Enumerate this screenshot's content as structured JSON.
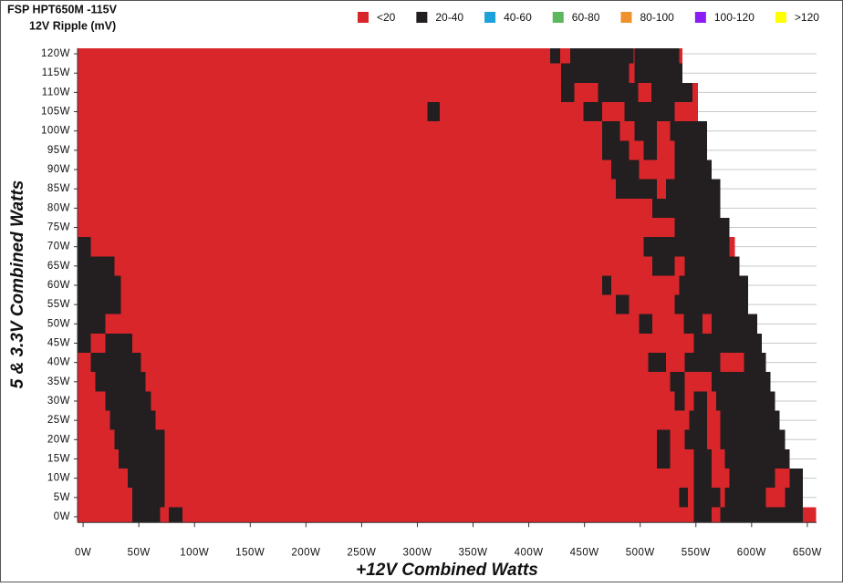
{
  "chart_data": {
    "type": "heatmap",
    "title": "FSP HPT650M -115V",
    "subtitle": "12V Ripple (mV)",
    "x_label": "+12V Combined Watts",
    "y_label": "5 & 3.3V Combined Watts",
    "levels": [
      {
        "name": "<20",
        "color": "#d9262b"
      },
      {
        "name": "20-40",
        "color": "#231f20"
      },
      {
        "name": "40-60",
        "color": "#1ea1d8"
      },
      {
        "name": "60-80",
        "color": "#5cb85c"
      },
      {
        "name": "80-100",
        "color": "#ef922e"
      },
      {
        "name": "100-120",
        "color": "#8a1cf5"
      },
      {
        "name": ">120",
        "color": "#ffff00"
      }
    ],
    "xlim": [
      -5,
      655
    ],
    "ylim": [
      -1.5,
      121.5
    ],
    "row_height": 5,
    "xticks": [
      {
        "value": 0,
        "label": "0W"
      },
      {
        "value": 50,
        "label": "50W"
      },
      {
        "value": 100,
        "label": "100W"
      },
      {
        "value": 150,
        "label": "150W"
      },
      {
        "value": 200,
        "label": "200W"
      },
      {
        "value": 250,
        "label": "250W"
      },
      {
        "value": 300,
        "label": "300W"
      },
      {
        "value": 350,
        "label": "350W"
      },
      {
        "value": 400,
        "label": "400W"
      },
      {
        "value": 450,
        "label": "450W"
      },
      {
        "value": 500,
        "label": "500W"
      },
      {
        "value": 550,
        "label": "550W"
      },
      {
        "value": 600,
        "label": "600W"
      },
      {
        "value": 650,
        "label": "650W"
      }
    ],
    "yticks": [
      {
        "value": 0,
        "label": "0W"
      },
      {
        "value": 5,
        "label": "5W"
      },
      {
        "value": 10,
        "label": "10W"
      },
      {
        "value": 15,
        "label": "15W"
      },
      {
        "value": 20,
        "label": "20W"
      },
      {
        "value": 25,
        "label": "25W"
      },
      {
        "value": 30,
        "label": "30W"
      },
      {
        "value": 35,
        "label": "35W"
      },
      {
        "value": 40,
        "label": "40W"
      },
      {
        "value": 45,
        "label": "45W"
      },
      {
        "value": 50,
        "label": "50W"
      },
      {
        "value": 55,
        "label": "55W"
      },
      {
        "value": 60,
        "label": "60W"
      },
      {
        "value": 65,
        "label": "65W"
      },
      {
        "value": 70,
        "label": "70W"
      },
      {
        "value": 75,
        "label": "75W"
      },
      {
        "value": 80,
        "label": "80W"
      },
      {
        "value": 85,
        "label": "85W"
      },
      {
        "value": 90,
        "label": "90W"
      },
      {
        "value": 95,
        "label": "95W"
      },
      {
        "value": 100,
        "label": "100W"
      },
      {
        "value": 105,
        "label": "105W"
      },
      {
        "value": 110,
        "label": "110W"
      },
      {
        "value": 115,
        "label": "115W"
      },
      {
        "value": 120,
        "label": "120W"
      }
    ],
    "grid": true,
    "rows": [
      {
        "y": 120,
        "segments": [
          [
            -5,
            538,
            0
          ],
          [
            419,
            428,
            1
          ],
          [
            437,
            494,
            1
          ],
          [
            495,
            535,
            1
          ]
        ]
      },
      {
        "y": 115,
        "segments": [
          [
            -5,
            538,
            0
          ],
          [
            429,
            490,
            1
          ],
          [
            495,
            538,
            1
          ]
        ]
      },
      {
        "y": 110,
        "segments": [
          [
            -5,
            552,
            0
          ],
          [
            429,
            441,
            1
          ],
          [
            462,
            498,
            1
          ],
          [
            510,
            547,
            1
          ]
        ]
      },
      {
        "y": 105,
        "segments": [
          [
            -5,
            552,
            0
          ],
          [
            309,
            320,
            1
          ],
          [
            449,
            466,
            1
          ],
          [
            486,
            531,
            1
          ]
        ]
      },
      {
        "y": 100,
        "segments": [
          [
            -5,
            560,
            0
          ],
          [
            466,
            482,
            1
          ],
          [
            495,
            515,
            1
          ],
          [
            527,
            560,
            1
          ]
        ]
      },
      {
        "y": 95,
        "segments": [
          [
            -5,
            560,
            0
          ],
          [
            466,
            490,
            1
          ],
          [
            503,
            515,
            1
          ],
          [
            531,
            560,
            1
          ]
        ]
      },
      {
        "y": 90,
        "segments": [
          [
            -5,
            564,
            0
          ],
          [
            474,
            499,
            1
          ],
          [
            531,
            564,
            1
          ]
        ]
      },
      {
        "y": 85,
        "segments": [
          [
            -5,
            572,
            0
          ],
          [
            478,
            515,
            1
          ],
          [
            523,
            572,
            1
          ]
        ]
      },
      {
        "y": 80,
        "segments": [
          [
            -5,
            572,
            0
          ],
          [
            511,
            572,
            1
          ]
        ]
      },
      {
        "y": 75,
        "segments": [
          [
            -5,
            580,
            0
          ],
          [
            531,
            580,
            1
          ]
        ]
      },
      {
        "y": 70,
        "segments": [
          [
            -5,
            585,
            0
          ],
          [
            -5,
            7,
            1
          ],
          [
            503,
            580,
            1
          ]
        ]
      },
      {
        "y": 65,
        "segments": [
          [
            -5,
            589,
            0
          ],
          [
            -5,
            28,
            1
          ],
          [
            511,
            531,
            1
          ],
          [
            540,
            589,
            1
          ]
        ]
      },
      {
        "y": 60,
        "segments": [
          [
            -5,
            597,
            0
          ],
          [
            -5,
            34,
            1
          ],
          [
            466,
            474,
            1
          ],
          [
            535,
            597,
            1
          ]
        ]
      },
      {
        "y": 55,
        "segments": [
          [
            -5,
            597,
            0
          ],
          [
            -5,
            34,
            1
          ],
          [
            478,
            490,
            1
          ],
          [
            531,
            597,
            1
          ]
        ]
      },
      {
        "y": 50,
        "segments": [
          [
            -5,
            605,
            0
          ],
          [
            -5,
            20,
            1
          ],
          [
            499,
            511,
            1
          ],
          [
            539,
            556,
            1
          ],
          [
            564,
            605,
            1
          ]
        ]
      },
      {
        "y": 45,
        "segments": [
          [
            -5,
            609,
            0
          ],
          [
            -5,
            7,
            1
          ],
          [
            20,
            44,
            1
          ],
          [
            548,
            609,
            1
          ]
        ]
      },
      {
        "y": 40,
        "segments": [
          [
            -5,
            613,
            0
          ],
          [
            7,
            52,
            1
          ],
          [
            507,
            523,
            1
          ],
          [
            540,
            572,
            1
          ],
          [
            593,
            613,
            1
          ]
        ]
      },
      {
        "y": 35,
        "segments": [
          [
            -5,
            617,
            0
          ],
          [
            11,
            56,
            1
          ],
          [
            527,
            540,
            1
          ],
          [
            564,
            617,
            1
          ]
        ]
      },
      {
        "y": 30,
        "segments": [
          [
            -5,
            621,
            0
          ],
          [
            20,
            61,
            1
          ],
          [
            531,
            540,
            1
          ],
          [
            548,
            560,
            1
          ],
          [
            568,
            621,
            1
          ]
        ]
      },
      {
        "y": 25,
        "segments": [
          [
            -5,
            625,
            0
          ],
          [
            24,
            65,
            1
          ],
          [
            544,
            560,
            1
          ],
          [
            572,
            625,
            1
          ]
        ]
      },
      {
        "y": 20,
        "segments": [
          [
            -5,
            630,
            0
          ],
          [
            28,
            73,
            1
          ],
          [
            515,
            527,
            1
          ],
          [
            540,
            560,
            1
          ],
          [
            572,
            630,
            1
          ]
        ]
      },
      {
        "y": 15,
        "segments": [
          [
            -5,
            634,
            0
          ],
          [
            32,
            73,
            1
          ],
          [
            515,
            527,
            1
          ],
          [
            548,
            564,
            1
          ],
          [
            576,
            634,
            1
          ]
        ]
      },
      {
        "y": 10,
        "segments": [
          [
            -5,
            646,
            0
          ],
          [
            40,
            73,
            1
          ],
          [
            548,
            564,
            1
          ],
          [
            580,
            621,
            1
          ],
          [
            634,
            646,
            1
          ]
        ]
      },
      {
        "y": 5,
        "segments": [
          [
            -5,
            646,
            0
          ],
          [
            44,
            73,
            1
          ],
          [
            535,
            543,
            1
          ],
          [
            548,
            572,
            1
          ],
          [
            576,
            613,
            1
          ],
          [
            630,
            646,
            1
          ]
        ]
      },
      {
        "y": 0,
        "segments": [
          [
            -5,
            658,
            0
          ],
          [
            44,
            69,
            1
          ],
          [
            77,
            89,
            1
          ],
          [
            548,
            564,
            1
          ],
          [
            572,
            646,
            1
          ]
        ]
      }
    ]
  }
}
